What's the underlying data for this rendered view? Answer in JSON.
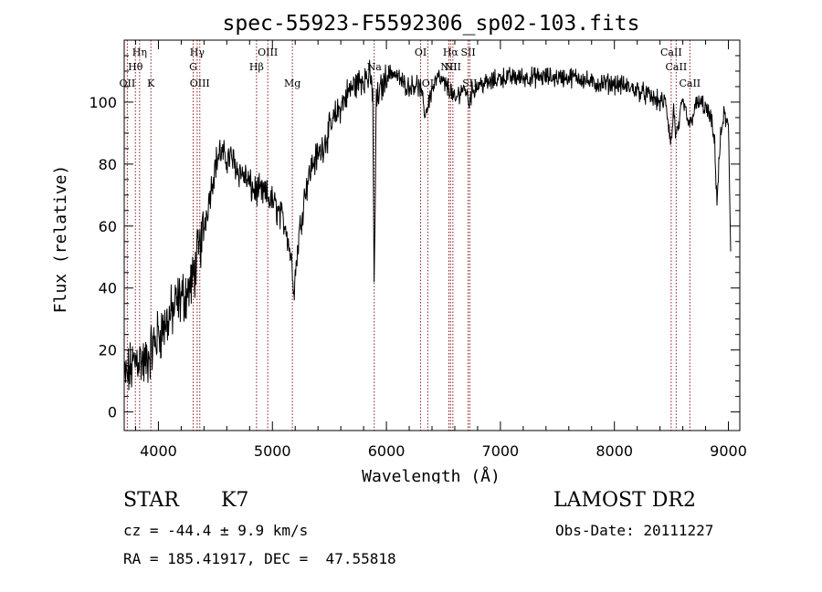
{
  "chart_data": {
    "type": "line",
    "title": "spec-55923-F5592306_sp02-103.fits",
    "xlabel": "Wavelength (Å)",
    "ylabel": "Flux (relative)",
    "xlim": [
      3700,
      9100
    ],
    "ylim": [
      -6,
      120
    ],
    "xticks": [
      4000,
      5000,
      6000,
      7000,
      8000,
      9000
    ],
    "yticks": [
      0,
      20,
      40,
      60,
      80,
      100
    ],
    "grid": false,
    "line_color": "#000000",
    "marker_color": "#8b1a1a",
    "series": [
      {
        "x": [
          3700,
          3760,
          3820,
          3880,
          3940,
          4000,
          4060,
          4120,
          4180,
          4240,
          4300,
          4330,
          4380,
          4420,
          4460,
          4500,
          4540,
          4580,
          4640,
          4700,
          4760,
          4820,
          4880,
          4940,
          5000,
          5060,
          5120,
          5170,
          5190,
          5230,
          5290,
          5350,
          5420,
          5490,
          5560,
          5620,
          5680,
          5740,
          5800,
          5850,
          5880,
          5893,
          5910,
          5950,
          6000,
          6050,
          6100,
          6150,
          6200,
          6260,
          6300,
          6340,
          6400,
          6450,
          6500,
          6562,
          6600,
          6650,
          6700,
          6720,
          6760,
          6820,
          6900,
          7000,
          7100,
          7200,
          7300,
          7400,
          7500,
          7600,
          7700,
          7800,
          7900,
          8000,
          8100,
          8200,
          8300,
          8400,
          8450,
          8498,
          8520,
          8542,
          8600,
          8662,
          8700,
          8750,
          8800,
          8850,
          8880,
          8900,
          8930,
          8960,
          9000,
          9020
        ],
        "y": [
          10,
          14,
          18,
          15,
          20,
          25,
          28,
          32,
          36,
          38,
          42,
          48,
          56,
          64,
          72,
          80,
          84,
          82,
          82,
          78,
          76,
          72,
          71,
          70,
          68,
          64,
          60,
          48,
          40,
          56,
          72,
          80,
          84,
          90,
          96,
          100,
          104,
          106,
          108,
          108,
          104,
          36,
          100,
          104,
          108,
          110,
          108,
          106,
          105,
          106,
          104,
          96,
          104,
          108,
          106,
          104,
          100,
          104,
          104,
          100,
          104,
          106,
          106,
          108,
          108,
          108,
          108,
          108,
          108,
          108,
          108,
          106,
          106,
          106,
          105,
          104,
          102,
          100,
          100,
          86,
          98,
          88,
          100,
          92,
          98,
          100,
          98,
          94,
          86,
          68,
          88,
          96,
          92,
          52
        ]
      }
    ],
    "lines": [
      {
        "label": "OII",
        "wl": 3727,
        "row": 3
      },
      {
        "label": "Hθ",
        "wl": 3798,
        "row": 2
      },
      {
        "label": "Hη",
        "wl": 3835,
        "row": 1
      },
      {
        "label": "K",
        "wl": 3934,
        "row": 3
      },
      {
        "label": "Hγ",
        "wl": 4340,
        "row": 1
      },
      {
        "label": "G",
        "wl": 4305,
        "row": 2
      },
      {
        "label": "OIII",
        "wl": 4363,
        "row": 3
      },
      {
        "label": "Hβ",
        "wl": 4861,
        "row": 2
      },
      {
        "label": "OIII",
        "wl": 4959,
        "row": 1
      },
      {
        "label": "Mg",
        "wl": 5175,
        "row": 3
      },
      {
        "label": "Na",
        "wl": 5893,
        "row": 2
      },
      {
        "label": "OI",
        "wl": 6300,
        "row": 1
      },
      {
        "label": "OI",
        "wl": 6363,
        "row": 3
      },
      {
        "label": "Hα",
        "wl": 6563,
        "row": 1
      },
      {
        "label": "SII",
        "wl": 6717,
        "row": 1
      },
      {
        "label": "NII",
        "wl": 6548,
        "row": 2
      },
      {
        "label": "NII",
        "wl": 6583,
        "row": 2
      },
      {
        "label": "SII",
        "wl": 6731,
        "row": 3
      },
      {
        "label": "CaII",
        "wl": 8498,
        "row": 1
      },
      {
        "label": "CaII",
        "wl": 8542,
        "row": 2
      },
      {
        "label": "CaII",
        "wl": 8662,
        "row": 3
      }
    ]
  },
  "info": {
    "object_class": "STAR",
    "subclass": "K7",
    "survey": "LAMOST DR2",
    "velocity": "cz = -44.4 ± 9.9 km/s",
    "obs_date": "Obs-Date: 20111227",
    "coords": "RA = 185.41917, DEC =  47.55818"
  }
}
